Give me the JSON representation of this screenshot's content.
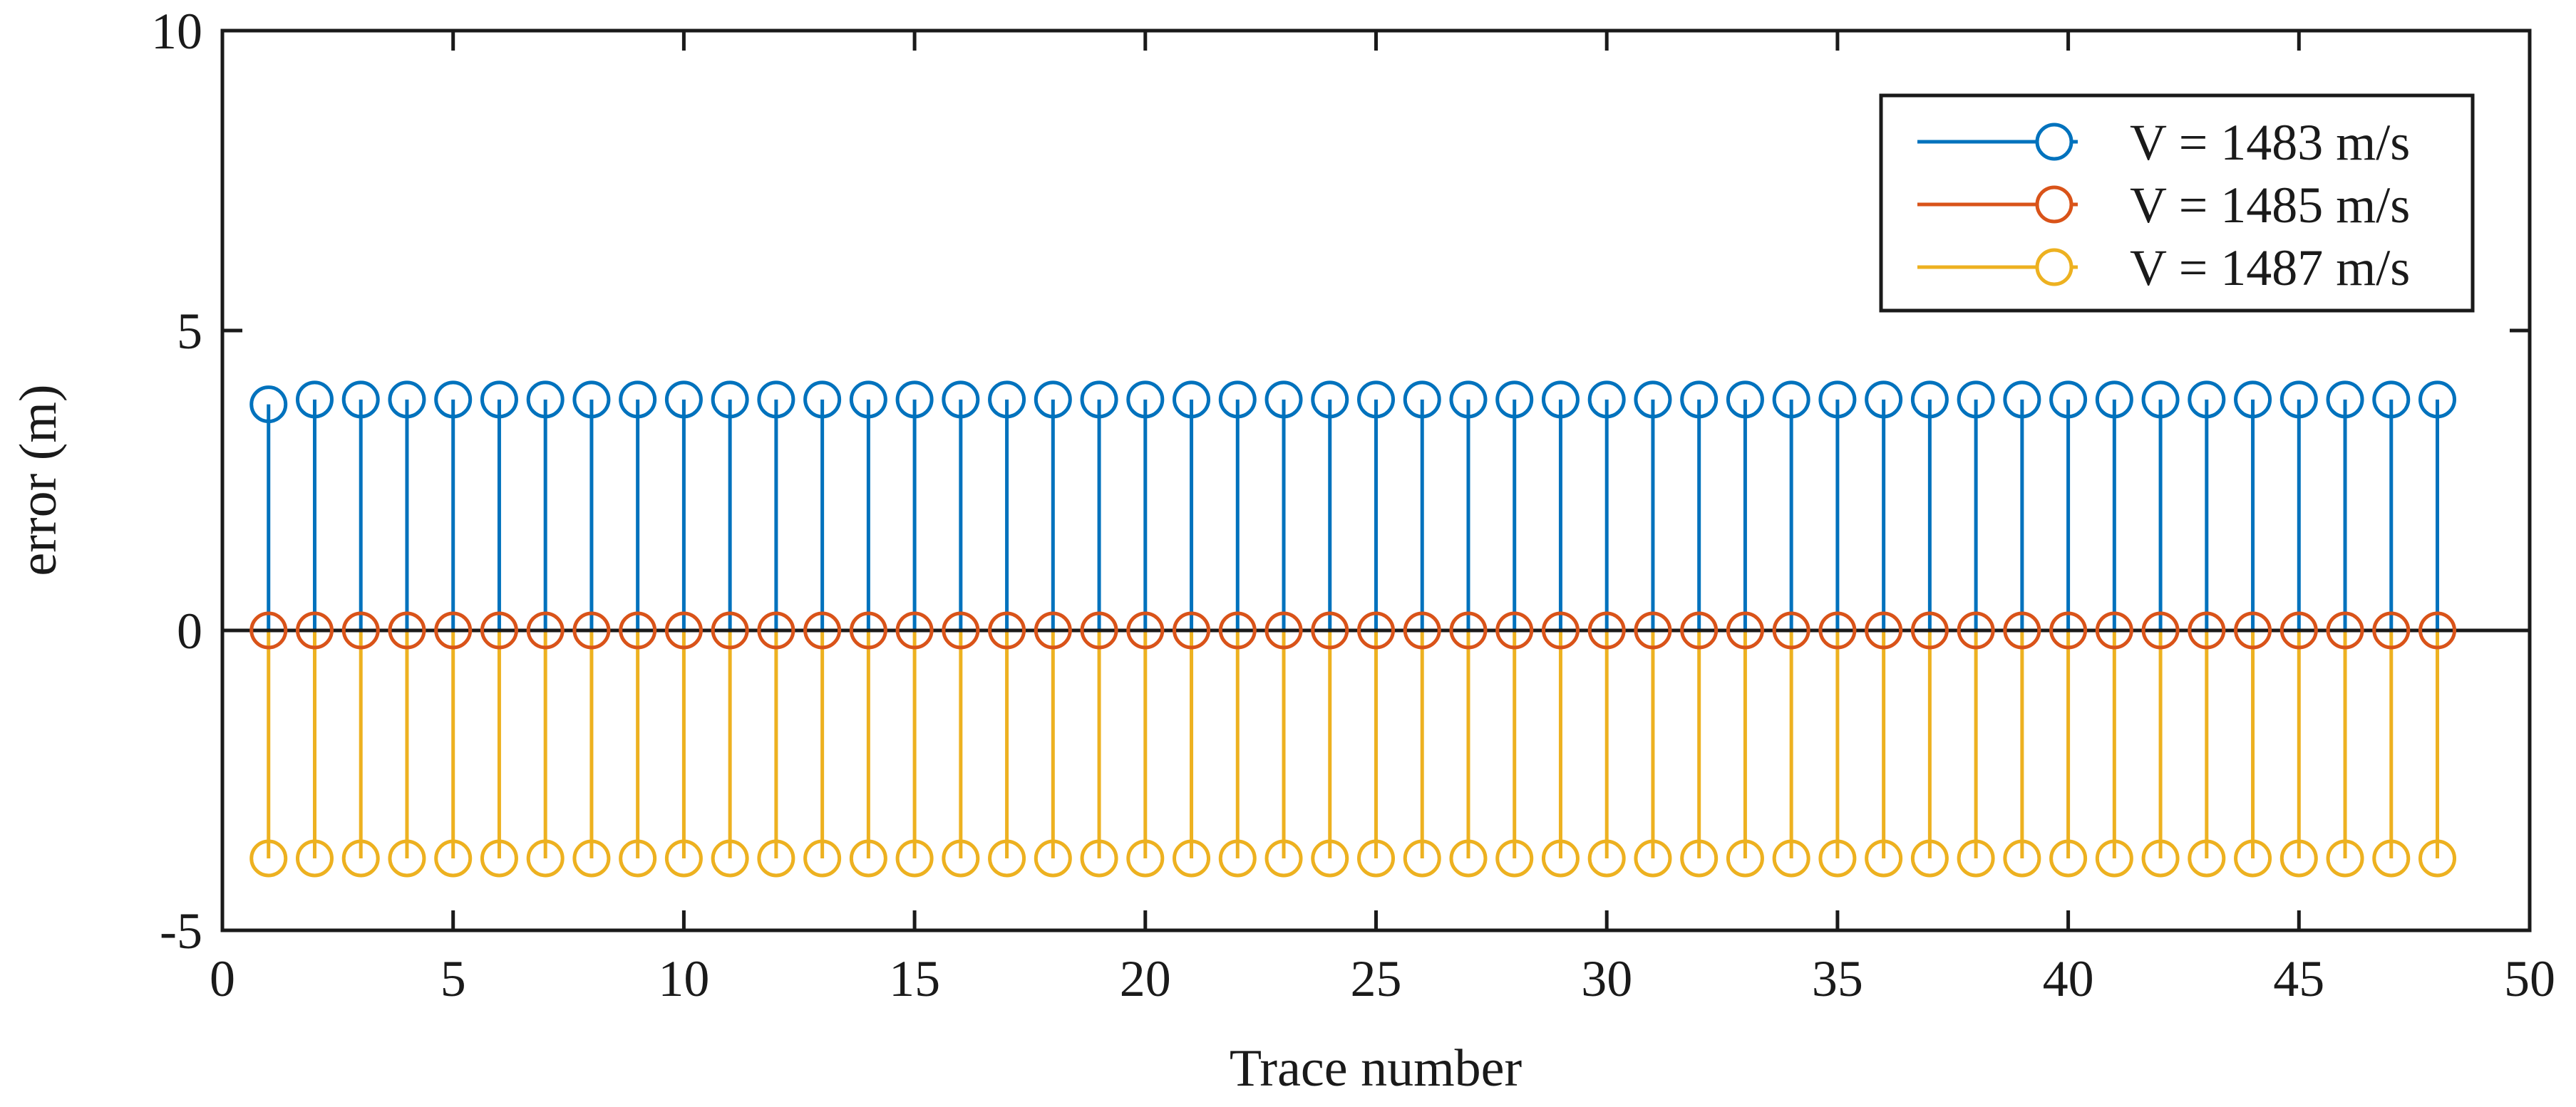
{
  "chart_data": {
    "type": "stem",
    "title": "",
    "xlabel": "Trace number",
    "ylabel": "error (m)",
    "xlim": [
      0,
      50
    ],
    "ylim": [
      -5,
      10
    ],
    "xticks": [
      0,
      5,
      10,
      15,
      20,
      25,
      30,
      35,
      40,
      45,
      50
    ],
    "yticks": [
      -5,
      0,
      5,
      10
    ],
    "x": [
      1,
      2,
      3,
      4,
      5,
      6,
      7,
      8,
      9,
      10,
      11,
      12,
      13,
      14,
      15,
      16,
      17,
      18,
      19,
      20,
      21,
      22,
      23,
      24,
      25,
      26,
      27,
      28,
      29,
      30,
      31,
      32,
      33,
      34,
      35,
      36,
      37,
      38,
      39,
      40,
      41,
      42,
      43,
      44,
      45,
      46,
      47,
      48
    ],
    "baseline": 0,
    "grid": false,
    "legend_position": "top-right",
    "series": [
      {
        "name": "V = 1483 m/s",
        "color": "#0072BD",
        "marker": "circle-open",
        "values": [
          3.77,
          3.85,
          3.85,
          3.85,
          3.85,
          3.85,
          3.85,
          3.85,
          3.85,
          3.85,
          3.85,
          3.85,
          3.85,
          3.85,
          3.85,
          3.85,
          3.85,
          3.85,
          3.85,
          3.85,
          3.85,
          3.85,
          3.85,
          3.85,
          3.85,
          3.85,
          3.85,
          3.85,
          3.85,
          3.85,
          3.85,
          3.85,
          3.85,
          3.85,
          3.85,
          3.85,
          3.85,
          3.85,
          3.85,
          3.85,
          3.85,
          3.85,
          3.85,
          3.85,
          3.85,
          3.85,
          3.85,
          3.85
        ]
      },
      {
        "name": "V = 1485 m/s",
        "color": "#D95319",
        "marker": "circle-open",
        "values": [
          0,
          0,
          0,
          0,
          0,
          0,
          0,
          0,
          0,
          0,
          0,
          0,
          0,
          0,
          0,
          0,
          0,
          0,
          0,
          0,
          0,
          0,
          0,
          0,
          0,
          0,
          0,
          0,
          0,
          0,
          0,
          0,
          0,
          0,
          0,
          0,
          0,
          0,
          0,
          0,
          0,
          0,
          0,
          0,
          0,
          0,
          0,
          0
        ]
      },
      {
        "name": "V = 1487 m/s",
        "color": "#EDB120",
        "marker": "circle-open",
        "values": [
          -3.8,
          -3.8,
          -3.8,
          -3.8,
          -3.8,
          -3.8,
          -3.8,
          -3.8,
          -3.8,
          -3.8,
          -3.8,
          -3.8,
          -3.8,
          -3.8,
          -3.8,
          -3.8,
          -3.8,
          -3.8,
          -3.8,
          -3.8,
          -3.8,
          -3.8,
          -3.8,
          -3.8,
          -3.8,
          -3.8,
          -3.8,
          -3.8,
          -3.8,
          -3.8,
          -3.8,
          -3.8,
          -3.8,
          -3.8,
          -3.8,
          -3.8,
          -3.8,
          -3.8,
          -3.8,
          -3.8,
          -3.8,
          -3.8,
          -3.8,
          -3.8,
          -3.8,
          -3.8,
          -3.8,
          -3.8
        ]
      }
    ]
  }
}
